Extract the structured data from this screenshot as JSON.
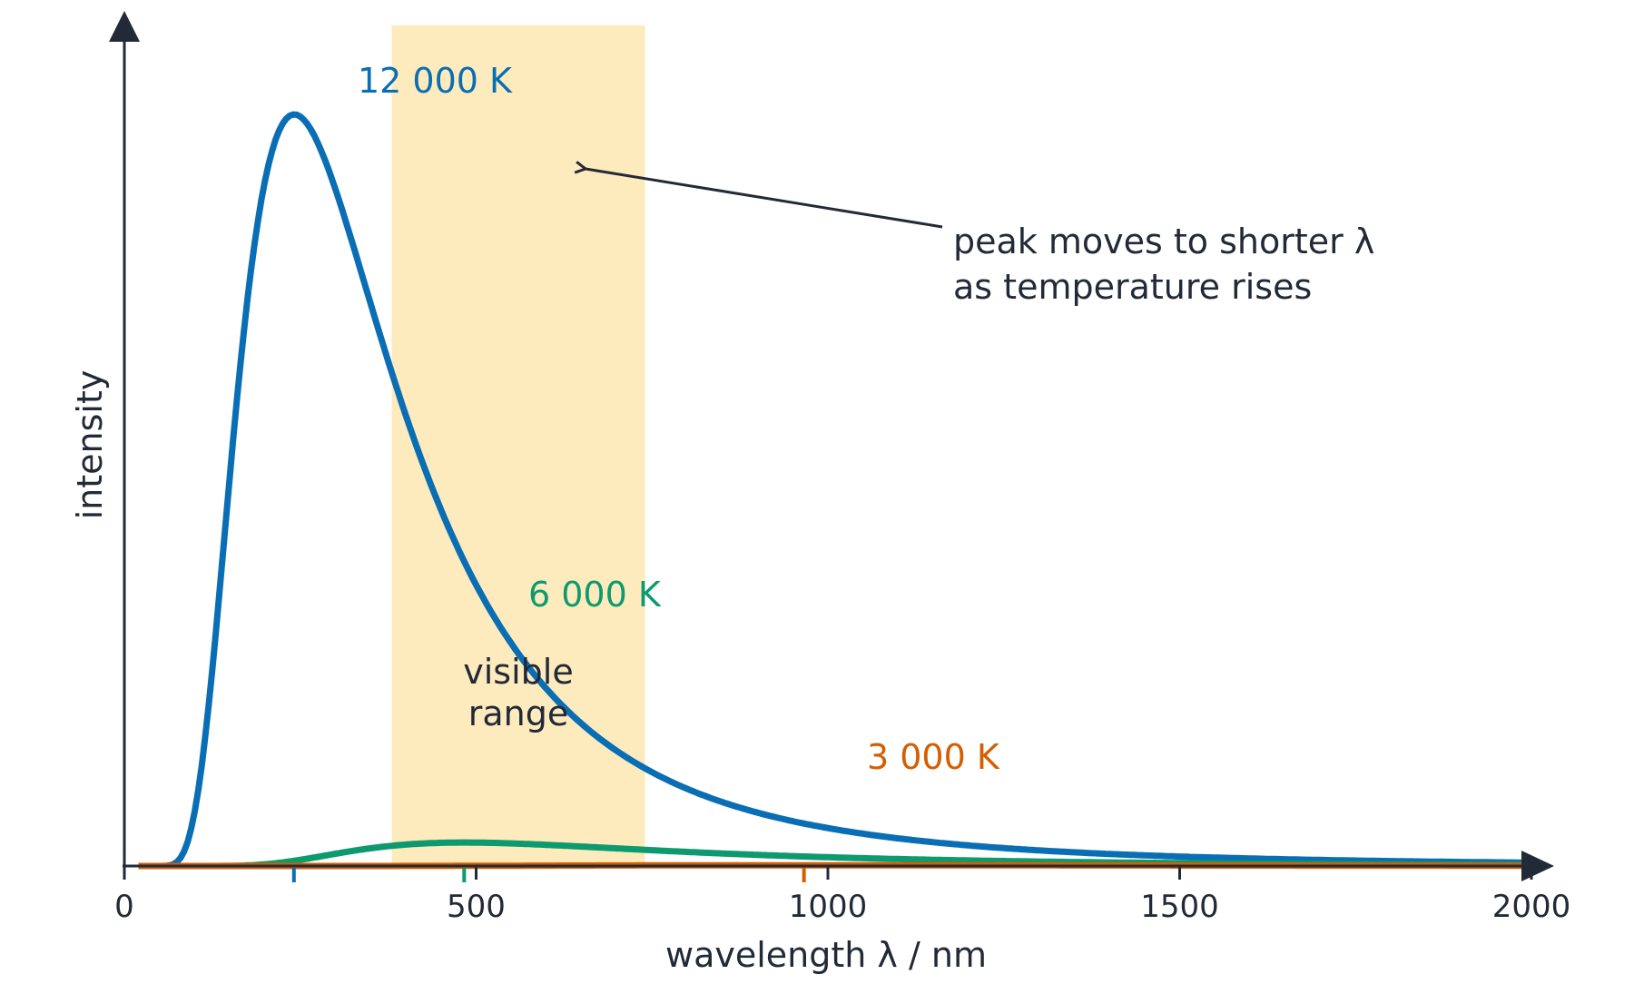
{
  "chart_data": {
    "type": "line",
    "title": "",
    "xlabel": "wavelength λ / nm",
    "ylabel": "intensity",
    "xlim": [
      0,
      2000
    ],
    "x_ticks": [
      "0",
      "500",
      "1000",
      "1500",
      "2000"
    ],
    "x_tick_values": [
      0,
      500,
      1000,
      1500,
      2000
    ],
    "grid": false,
    "x_step_nm": 10,
    "series": [
      {
        "name": "12 000 K",
        "temperature_K": 12000,
        "color": "#0a6eb4",
        "peak_wavelength_nm": 241
      },
      {
        "name": "6 000 K",
        "temperature_K": 6000,
        "color": "#0c9a6e",
        "peak_wavelength_nm": 483
      },
      {
        "name": "3 000 K",
        "temperature_K": 3000,
        "color": "#d55e00",
        "peak_wavelength_nm": 966
      }
    ],
    "visible_range": {
      "label_line1": "visible",
      "label_line2": "range",
      "from_nm": 380,
      "to_nm": 740,
      "color": "#fdebbd"
    },
    "annotation": {
      "line1": "peak moves to shorter λ",
      "line2": "as temperature rises"
    },
    "axis_color": "#222a38"
  }
}
